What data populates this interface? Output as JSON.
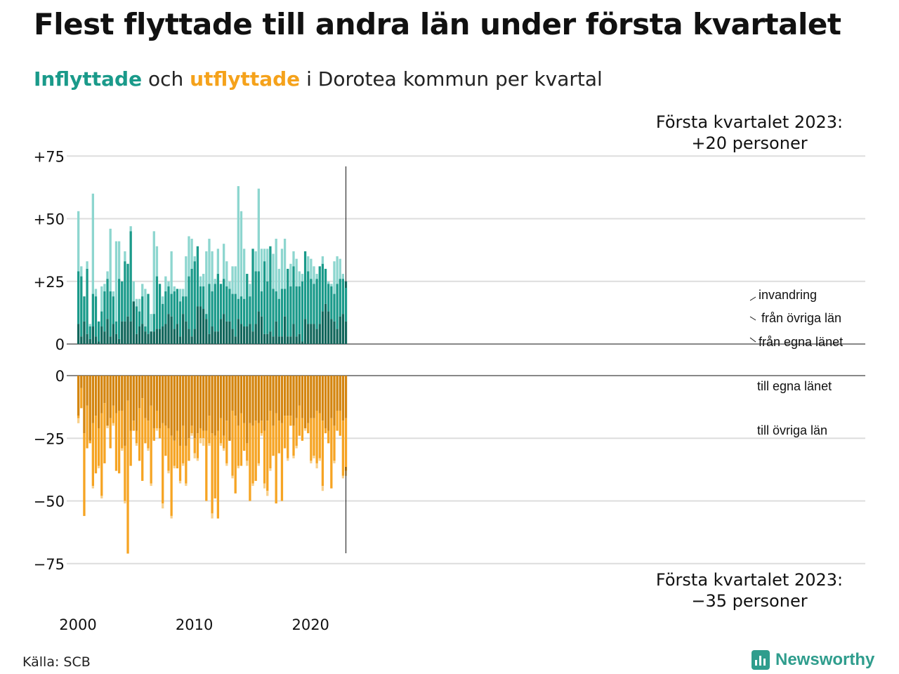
{
  "title": "Flest flyttade till andra län under första kvartalet",
  "subtitle": {
    "in_word": "Inflyttade",
    "and_word": " och ",
    "out_word": "utflyttade",
    "rest": " i Dorotea kommun per kvartal"
  },
  "source": "Källa: SCB",
  "logo": "Newsworthy",
  "annotation_top": [
    "Första kvartalet 2023:",
    "+20 personer"
  ],
  "annotation_bottom": [
    "Första kvartalet 2023:",
    "−35 personer"
  ],
  "colors": {
    "in_own": "#11665b",
    "in_other": "#1a9a8a",
    "in_immigration": "#8dd6cf",
    "out_own": "#d4850f",
    "out_other": "#f6a423",
    "out_emigration": "#f8d08c",
    "grid": "#dddddd"
  },
  "chart_data": {
    "type": "bar",
    "title": "",
    "x_start": "2000-Q1",
    "x_ticks": [
      "2000",
      "2010",
      "2020"
    ],
    "top": {
      "ylim": [
        0,
        75
      ],
      "y_ticks": [
        "0",
        "+25",
        "+50",
        "+75"
      ],
      "series": [
        {
          "name": "från egna länet",
          "values": [
            8,
            3,
            9,
            4,
            2,
            7,
            3,
            1,
            7,
            5,
            10,
            3,
            8,
            4,
            2,
            9,
            11,
            9,
            17,
            4,
            7,
            8,
            5,
            4,
            5,
            5,
            6,
            6,
            7,
            8,
            12,
            11,
            6,
            8,
            3,
            12,
            9,
            6,
            3,
            6,
            15,
            15,
            14,
            10,
            4,
            7,
            5,
            5,
            10,
            12,
            9,
            9,
            6,
            3,
            10,
            8,
            7,
            7,
            8,
            5,
            8,
            13,
            11,
            4,
            4,
            5,
            3,
            9,
            3,
            3,
            11,
            3,
            3,
            8,
            3,
            4,
            1,
            10,
            8,
            8,
            8,
            6,
            8,
            13,
            16,
            13,
            10,
            9,
            6,
            11,
            12,
            9,
            9,
            7
          ],
          "note": "placeholder"
        }
      ]
    }
  }
}
